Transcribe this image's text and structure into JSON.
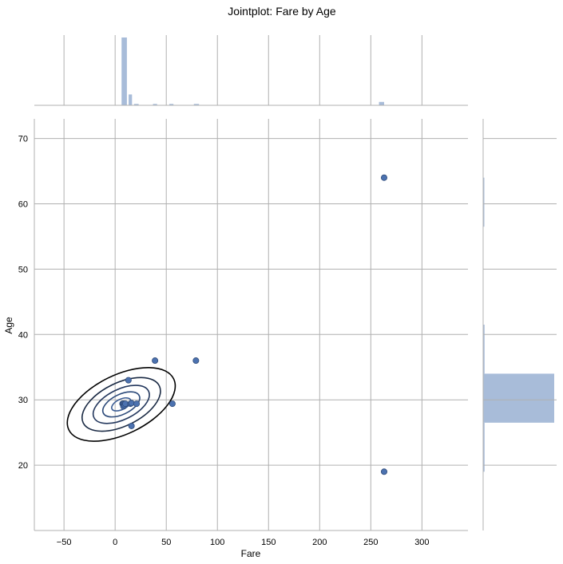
{
  "chart_data": {
    "type": "scatter",
    "title": "Jointplot: Fare by Age",
    "xlabel": "Fare",
    "ylabel": "Age",
    "xlim": [
      -79,
      345
    ],
    "ylim": [
      10,
      73
    ],
    "xticks": [
      -50,
      0,
      50,
      100,
      150,
      200,
      250,
      300
    ],
    "yticks": [
      20,
      30,
      40,
      50,
      60,
      70
    ],
    "grid": true,
    "colors": {
      "points": "#4c72b0",
      "hist": "#a8bcd9",
      "contour_outer": "#000000",
      "contour_inner": "#2c4a7a"
    },
    "points": [
      {
        "x": 263,
        "y": 64
      },
      {
        "x": 263,
        "y": 19
      },
      {
        "x": 39,
        "y": 36
      },
      {
        "x": 79,
        "y": 36
      },
      {
        "x": 13,
        "y": 33
      },
      {
        "x": 7.2,
        "y": 29.4
      },
      {
        "x": 7.9,
        "y": 29.4
      },
      {
        "x": 8.1,
        "y": 29.0
      },
      {
        "x": 8.7,
        "y": 29.4
      },
      {
        "x": 9.2,
        "y": 29.2
      },
      {
        "x": 10,
        "y": 29.4
      },
      {
        "x": 15,
        "y": 29.4
      },
      {
        "x": 16,
        "y": 29.5
      },
      {
        "x": 21,
        "y": 29.4
      },
      {
        "x": 56,
        "y": 29.4
      },
      {
        "x": 16,
        "y": 26
      }
    ],
    "kde_contours": {
      "center": [
        6,
        29.3
      ],
      "angle_deg": -26,
      "levels": [
        {
          "rx": 73,
          "ry": 37,
          "color": "#000000"
        },
        {
          "rx": 53,
          "ry": 27,
          "color": "#1a2a44"
        },
        {
          "rx": 38,
          "ry": 19,
          "color": "#24385e"
        },
        {
          "rx": 25,
          "ry": 12.5,
          "color": "#2c4a7a"
        },
        {
          "rx": 13,
          "ry": 6.5,
          "color": "#3a5c94"
        }
      ]
    },
    "marginal_x": {
      "bins": [
        {
          "x0": 6.3,
          "x1": 11.5,
          "count": 100
        },
        {
          "x0": 13.2,
          "x1": 16.5,
          "count": 16
        },
        {
          "x0": 18.5,
          "x1": 23,
          "count": 2
        },
        {
          "x0": 37,
          "x1": 41,
          "count": 2
        },
        {
          "x0": 53,
          "x1": 57,
          "count": 2
        },
        {
          "x0": 77,
          "x1": 82,
          "count": 2
        },
        {
          "x0": 258,
          "x1": 263,
          "count": 5
        }
      ],
      "max": 100
    },
    "marginal_y": {
      "bins": [
        {
          "y0": 19,
          "y1": 26.5,
          "count": 2
        },
        {
          "y0": 26.5,
          "y1": 34,
          "count": 100
        },
        {
          "y0": 34,
          "y1": 41.5,
          "count": 2
        },
        {
          "y0": 56.5,
          "y1": 64,
          "count": 1
        }
      ],
      "max": 100
    }
  }
}
